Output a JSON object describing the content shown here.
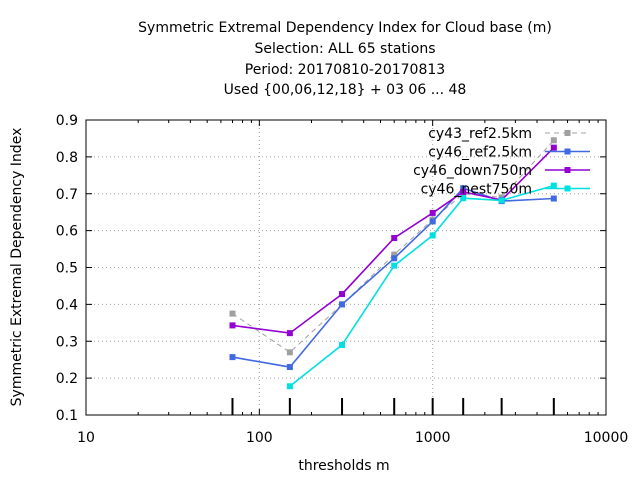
{
  "chart_data": {
    "type": "line",
    "title_lines": [
      "Symmetric Extremal Dependency Index  for Cloud base (m)",
      "Selection: ALL      65 stations",
      "Period: 20170810-20170813",
      "Used {00,06,12,18} + 03 06 ... 48"
    ],
    "xlabel": "thresholds m",
    "ylabel": "Symmetric Extremal Dependency Index",
    "x_scale": "log",
    "xlim": [
      10,
      10000
    ],
    "ylim": [
      0.1,
      0.9
    ],
    "x_ticks": [
      10,
      100,
      1000,
      10000
    ],
    "x_tick_labels": [
      "10",
      "100",
      "1000",
      "10000"
    ],
    "y_ticks": [
      0.1,
      0.2,
      0.3,
      0.4,
      0.5,
      0.6,
      0.7,
      0.8,
      0.9
    ],
    "y_tick_labels": [
      "0.1",
      "0.2",
      "0.3",
      "0.4",
      "0.5",
      "0.6",
      "0.7",
      "0.8",
      "0.9"
    ],
    "grid": true,
    "legend_position": "top-right",
    "threshold_markers": [
      70,
      150,
      300,
      600,
      1000,
      1500,
      2500,
      5000
    ],
    "series": [
      {
        "name": "cy43_ref2.5km",
        "color": "#a0a0a0",
        "dashed": true,
        "x": [
          70,
          150,
          300,
          600,
          1000,
          1500,
          2500,
          5000
        ],
        "y": [
          0.375,
          0.27,
          0.4,
          0.535,
          0.63,
          0.7,
          0.69,
          0.845
        ]
      },
      {
        "name": "cy46_ref2.5km",
        "color": "#4169e1",
        "dashed": false,
        "x": [
          70,
          150,
          300,
          600,
          1000,
          1500,
          2500,
          5000
        ],
        "y": [
          0.257,
          0.23,
          0.4,
          0.525,
          0.625,
          0.715,
          0.68,
          0.687
        ]
      },
      {
        "name": "cy46_down750m",
        "color": "#9400d3",
        "dashed": false,
        "x": [
          70,
          150,
          300,
          600,
          1000,
          1500,
          2500,
          5000
        ],
        "y": [
          0.343,
          0.322,
          0.428,
          0.58,
          0.648,
          0.705,
          0.683,
          0.825
        ]
      },
      {
        "name": "cy46_nest750m",
        "color": "#00e0e0",
        "dashed": false,
        "x": [
          150,
          300,
          600,
          1000,
          1500,
          2500,
          5000
        ],
        "y": [
          0.178,
          0.29,
          0.505,
          0.587,
          0.688,
          0.682,
          0.722
        ]
      }
    ]
  }
}
